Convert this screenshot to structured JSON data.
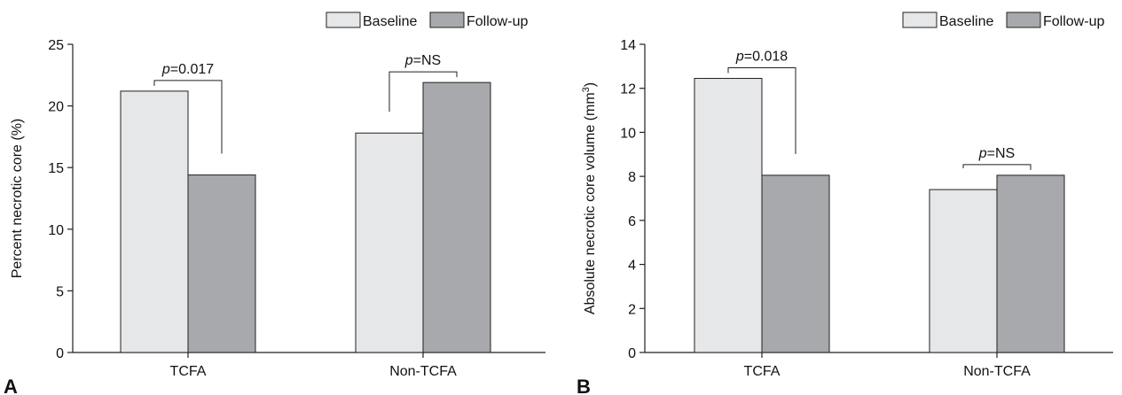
{
  "colors": {
    "baseline": "#e6e7e8",
    "followup": "#a7a9ac",
    "stroke": "#231f20"
  },
  "chart_data": [
    {
      "type": "bar",
      "panel_label": "A",
      "categories": [
        "TCFA",
        "Non-TCFA"
      ],
      "series": [
        {
          "name": "Baseline",
          "values": [
            21.2,
            17.8
          ]
        },
        {
          "name": "Follow-up",
          "values": [
            14.4,
            21.9
          ]
        }
      ],
      "ylabel": "Percent necrotic core (%)",
      "ylim": [
        0,
        25
      ],
      "yticks": [
        0,
        5,
        10,
        15,
        20,
        25
      ],
      "grid": false,
      "legend": "top-right",
      "annotations": [
        {
          "category": "TCFA",
          "prefix": "p",
          "text": "=0.017"
        },
        {
          "category": "Non-TCFA",
          "prefix": "p",
          "text": "=NS"
        }
      ]
    },
    {
      "type": "bar",
      "panel_label": "B",
      "categories": [
        "TCFA",
        "Non-TCFA"
      ],
      "series": [
        {
          "name": "Baseline",
          "values": [
            12.45,
            7.4
          ]
        },
        {
          "name": "Follow-up",
          "values": [
            8.05,
            8.05
          ]
        }
      ],
      "ylabel": "Absolute necrotic core volume (mm³)",
      "ylim": [
        0,
        14
      ],
      "yticks": [
        0,
        2,
        4,
        6,
        8,
        10,
        12,
        14
      ],
      "grid": false,
      "legend": "top-right",
      "annotations": [
        {
          "category": "TCFA",
          "prefix": "p",
          "text": "=0.018"
        },
        {
          "category": "Non-TCFA",
          "prefix": "p",
          "text": "=NS"
        }
      ]
    }
  ]
}
